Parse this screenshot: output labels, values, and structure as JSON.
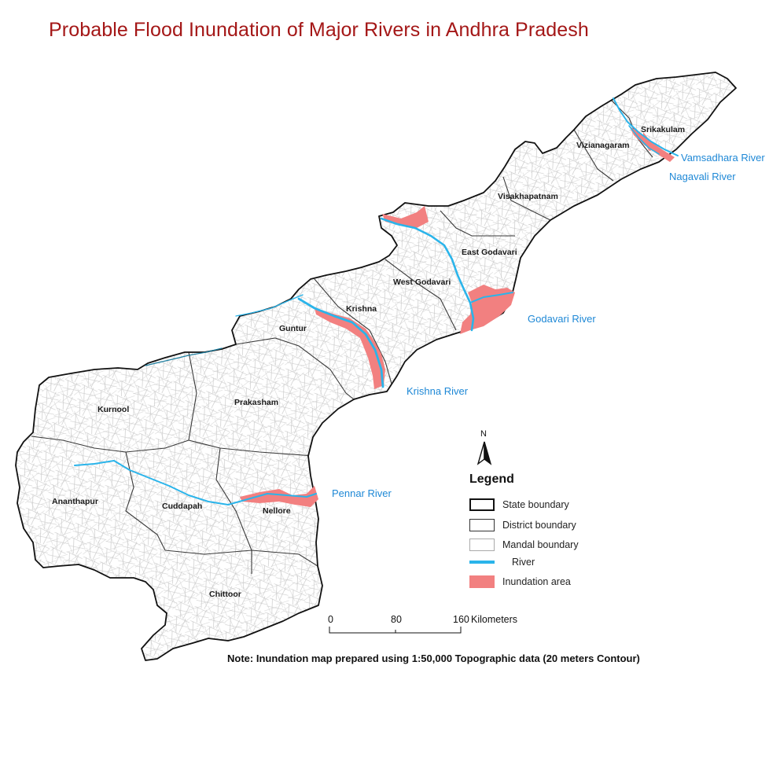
{
  "title": "Probable Flood Inundation of Major Rivers in Andhra Pradesh",
  "districts": {
    "srikakulam": "Srikakulam",
    "vizianagaram": "Vizianagaram",
    "visakhapatnam": "Visakhapatnam",
    "east_godavari": "East Godavari",
    "west_godavari": "West Godavari",
    "krishna": "Krishna",
    "guntur": "Guntur",
    "prakasham": "Prakasham",
    "kurnool": "Kurnool",
    "ananthapur": "Ananthapur",
    "cuddapah": "Cuddapah",
    "nellore": "Nellore",
    "chittoor": "Chittoor"
  },
  "rivers": {
    "vamsadhara": "Vamsadhara River",
    "nagavali": "Nagavali River",
    "godavari": "Godavari River",
    "krishna": "Krishna River",
    "pennar": "Pennar River"
  },
  "legend": {
    "title": "Legend",
    "items": [
      {
        "label": "State boundary",
        "symbol": "state-boundary"
      },
      {
        "label": "District boundary",
        "symbol": "district-boundary"
      },
      {
        "label": "Mandal boundary",
        "symbol": "mandal-boundary"
      },
      {
        "label": "River",
        "symbol": "river-line"
      },
      {
        "label": "Inundation area",
        "symbol": "inundation-area"
      }
    ]
  },
  "north_arrow": "N",
  "scale_bar": {
    "ticks": [
      "0",
      "80",
      "160"
    ],
    "unit": "Kilometers"
  },
  "note": "Note: Inundation map prepared using 1:50,000  Topographic data (20 meters Contour)",
  "colors": {
    "title": "#a41717",
    "river": "#2ab4ea",
    "river_label": "#1e88d6",
    "inundation": "#f28080",
    "state_boundary": "#111111",
    "district_boundary": "#333333",
    "mandal_boundary": "#bbbbbb"
  }
}
